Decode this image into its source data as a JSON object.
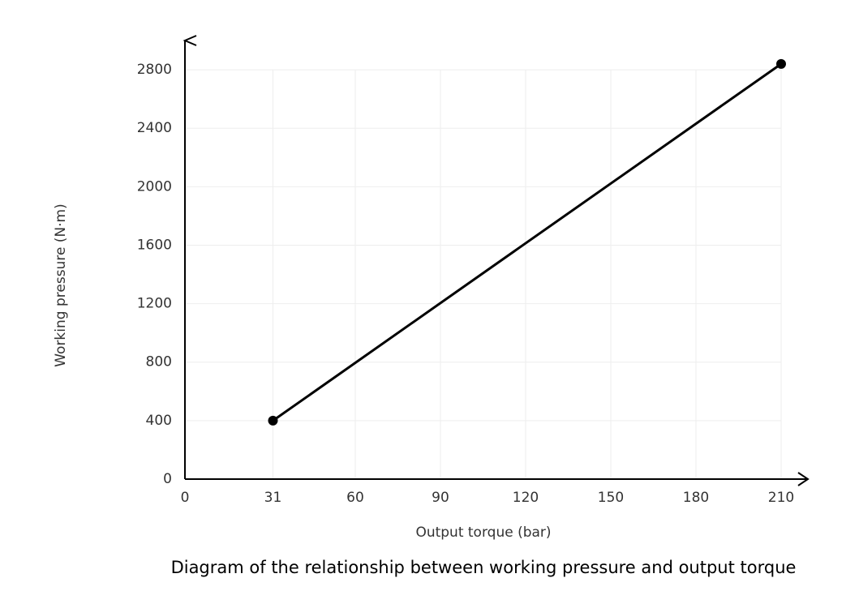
{
  "chart_data": {
    "type": "line",
    "title": "Diagram of the relationship between working pressure and output torque",
    "x_label": "Output torque (bar)",
    "y_label": "Working pressure (N·m)",
    "x": [
      31,
      210
    ],
    "values": [
      400,
      2840
    ],
    "color": "#000000",
    "xlim": [
      0,
      220
    ],
    "xticks": [
      0,
      31,
      60,
      90,
      120,
      150,
      180,
      210
    ],
    "ylim": [
      0,
      3000
    ],
    "yticks": [
      0,
      400,
      800,
      1200,
      1600,
      2000,
      2400,
      2800
    ],
    "grid": true
  }
}
